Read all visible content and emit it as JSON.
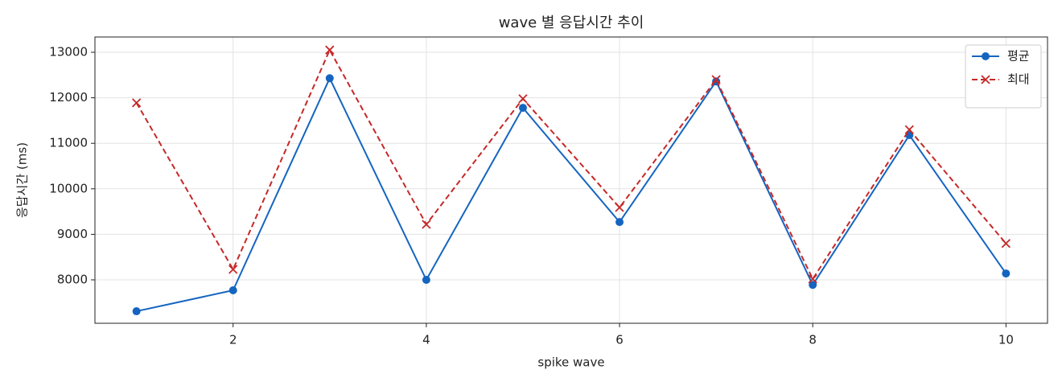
{
  "chart_data": {
    "type": "line",
    "title": "wave 별 응답시간 추이",
    "xlabel": "spike wave",
    "ylabel": "응답시간 (ms)",
    "x": [
      1,
      2,
      3,
      4,
      5,
      6,
      7,
      8,
      9,
      10
    ],
    "series": [
      {
        "name": "평균",
        "color": "#1565c0",
        "marker": "o",
        "linestyle": "solid",
        "values": [
          7310,
          7770,
          12430,
          8000,
          11780,
          9270,
          12360,
          7890,
          11180,
          8140
        ]
      },
      {
        "name": "최대",
        "color": "#c62828",
        "marker": "x",
        "linestyle": "dashed",
        "values": [
          11890,
          8230,
          13050,
          9220,
          11980,
          9590,
          12400,
          8020,
          11300,
          8800
        ]
      }
    ],
    "xlim": [
      0.57,
      10.43
    ],
    "xticks": [
      2,
      4,
      6,
      8,
      10
    ],
    "ylim": [
      7046,
      13336
    ],
    "yticks": [
      8000,
      9000,
      10000,
      11000,
      12000,
      13000
    ],
    "grid": true,
    "legend": "upper right"
  }
}
